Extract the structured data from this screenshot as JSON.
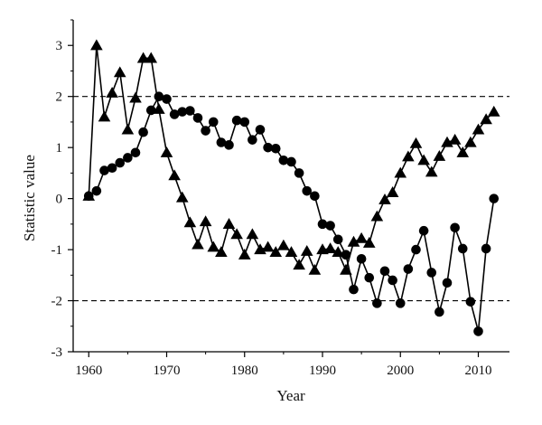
{
  "chart_data": {
    "type": "line",
    "title": "",
    "xlabel": "Year",
    "ylabel": "Statistic value",
    "xlim": [
      1958,
      2014
    ],
    "ylim": [
      -3,
      3.5
    ],
    "x_ticks": [
      1960,
      1970,
      1980,
      1990,
      2000,
      2010
    ],
    "y_ticks": [
      -3,
      -2,
      -1,
      0,
      1,
      2,
      3
    ],
    "grid": false,
    "legend": "none",
    "reference_lines": [
      2,
      -2
    ],
    "colors": {
      "series": "#000000",
      "reference": "#000000"
    },
    "series": [
      {
        "marker": "triangle",
        "points": [
          [
            1960,
            0.05
          ],
          [
            1961,
            3.0
          ],
          [
            1962,
            1.6
          ],
          [
            1963,
            2.07
          ],
          [
            1964,
            2.47
          ],
          [
            1965,
            1.35
          ],
          [
            1966,
            1.97
          ],
          [
            1967,
            2.75
          ],
          [
            1968,
            2.75
          ],
          [
            1969,
            1.75
          ],
          [
            1970,
            0.9
          ],
          [
            1971,
            0.45
          ],
          [
            1972,
            0.02
          ],
          [
            1973,
            -0.47
          ],
          [
            1974,
            -0.9
          ],
          [
            1975,
            -0.45
          ],
          [
            1976,
            -0.95
          ],
          [
            1977,
            -1.05
          ],
          [
            1978,
            -0.5
          ],
          [
            1979,
            -0.7
          ],
          [
            1980,
            -1.1
          ],
          [
            1981,
            -0.7
          ],
          [
            1982,
            -1.0
          ],
          [
            1983,
            -0.95
          ],
          [
            1984,
            -1.05
          ],
          [
            1985,
            -0.92
          ],
          [
            1986,
            -1.05
          ],
          [
            1987,
            -1.3
          ],
          [
            1988,
            -1.03
          ],
          [
            1989,
            -1.4
          ],
          [
            1990,
            -1.0
          ],
          [
            1991,
            -0.98
          ],
          [
            1992,
            -1.05
          ],
          [
            1993,
            -1.4
          ],
          [
            1994,
            -0.85
          ],
          [
            1995,
            -0.78
          ],
          [
            1996,
            -0.87
          ],
          [
            1997,
            -0.35
          ],
          [
            1998,
            -0.02
          ],
          [
            1999,
            0.12
          ],
          [
            2000,
            0.5
          ],
          [
            2001,
            0.82
          ],
          [
            2002,
            1.08
          ],
          [
            2003,
            0.75
          ],
          [
            2004,
            0.52
          ],
          [
            2005,
            0.83
          ],
          [
            2006,
            1.1
          ],
          [
            2007,
            1.15
          ],
          [
            2008,
            0.9
          ],
          [
            2009,
            1.1
          ],
          [
            2010,
            1.35
          ],
          [
            2011,
            1.55
          ],
          [
            2012,
            1.7
          ]
        ]
      },
      {
        "marker": "circle",
        "points": [
          [
            1960,
            0.05
          ],
          [
            1961,
            0.15
          ],
          [
            1962,
            0.55
          ],
          [
            1963,
            0.6
          ],
          [
            1964,
            0.7
          ],
          [
            1965,
            0.8
          ],
          [
            1966,
            0.9
          ],
          [
            1967,
            1.3
          ],
          [
            1968,
            1.73
          ],
          [
            1969,
            2.0
          ],
          [
            1970,
            1.95
          ],
          [
            1971,
            1.65
          ],
          [
            1972,
            1.7
          ],
          [
            1973,
            1.72
          ],
          [
            1974,
            1.58
          ],
          [
            1975,
            1.33
          ],
          [
            1976,
            1.5
          ],
          [
            1977,
            1.1
          ],
          [
            1978,
            1.05
          ],
          [
            1979,
            1.53
          ],
          [
            1980,
            1.5
          ],
          [
            1981,
            1.15
          ],
          [
            1982,
            1.35
          ],
          [
            1983,
            1.0
          ],
          [
            1984,
            0.98
          ],
          [
            1985,
            0.75
          ],
          [
            1986,
            0.72
          ],
          [
            1987,
            0.5
          ],
          [
            1988,
            0.15
          ],
          [
            1989,
            0.05
          ],
          [
            1990,
            -0.5
          ],
          [
            1991,
            -0.53
          ],
          [
            1992,
            -0.8
          ],
          [
            1993,
            -1.1
          ],
          [
            1994,
            -1.78
          ],
          [
            1995,
            -1.18
          ],
          [
            1996,
            -1.55
          ],
          [
            1997,
            -2.05
          ],
          [
            1998,
            -1.42
          ],
          [
            1999,
            -1.6
          ],
          [
            2000,
            -2.05
          ],
          [
            2001,
            -1.38
          ],
          [
            2002,
            -1.0
          ],
          [
            2003,
            -0.63
          ],
          [
            2004,
            -1.45
          ],
          [
            2005,
            -2.22
          ],
          [
            2006,
            -1.65
          ],
          [
            2007,
            -0.57
          ],
          [
            2008,
            -0.98
          ],
          [
            2009,
            -2.02
          ],
          [
            2010,
            -2.6
          ],
          [
            2011,
            -0.98
          ],
          [
            2012,
            0.0
          ]
        ]
      }
    ]
  }
}
